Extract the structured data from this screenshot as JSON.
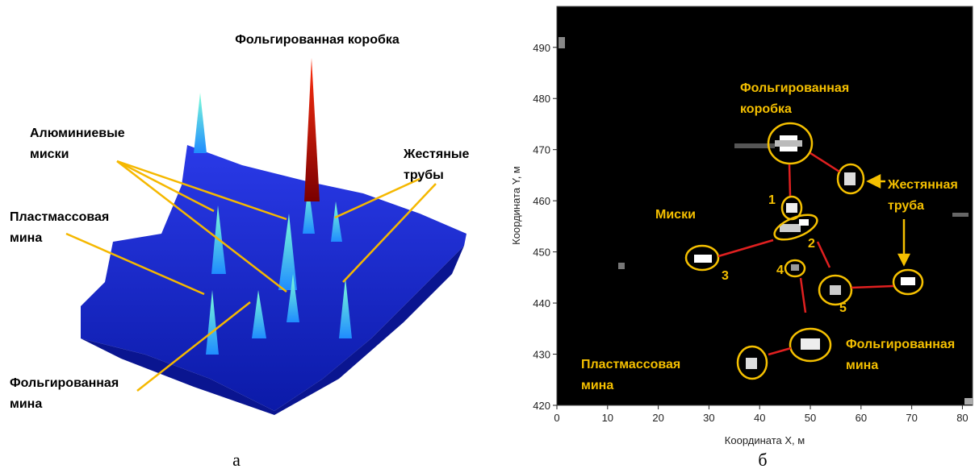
{
  "panel_a": {
    "label": "а",
    "annotations": [
      [
        "Фольгированная коробка"
      ],
      [
        "Алюминиевые",
        "миски"
      ],
      [
        "Жестяные",
        "трубы"
      ],
      [
        "Пластмассовая",
        "мина"
      ],
      [
        "Фольгированная",
        "мина"
      ]
    ]
  },
  "chart_data": {
    "type": "heatmap",
    "label": "б",
    "xlabel": "Координата X, м",
    "ylabel": "Координата Y, м",
    "xlim": [
      0,
      82
    ],
    "ylim": [
      420,
      498
    ],
    "xticks": [
      0,
      10,
      20,
      30,
      40,
      50,
      60,
      70,
      80
    ],
    "yticks": [
      420,
      430,
      440,
      450,
      460,
      470,
      480,
      490
    ],
    "annotations": [
      [
        "Фольгированная",
        "коробка"
      ],
      [
        "Жестянная",
        "труба"
      ],
      [
        "Миски"
      ],
      [
        "1"
      ],
      [
        "2"
      ],
      [
        "3"
      ],
      [
        "4"
      ],
      [
        "5"
      ],
      [
        "Пластмассовая",
        "мина"
      ],
      [
        "Фольгированная",
        "мина"
      ]
    ]
  }
}
